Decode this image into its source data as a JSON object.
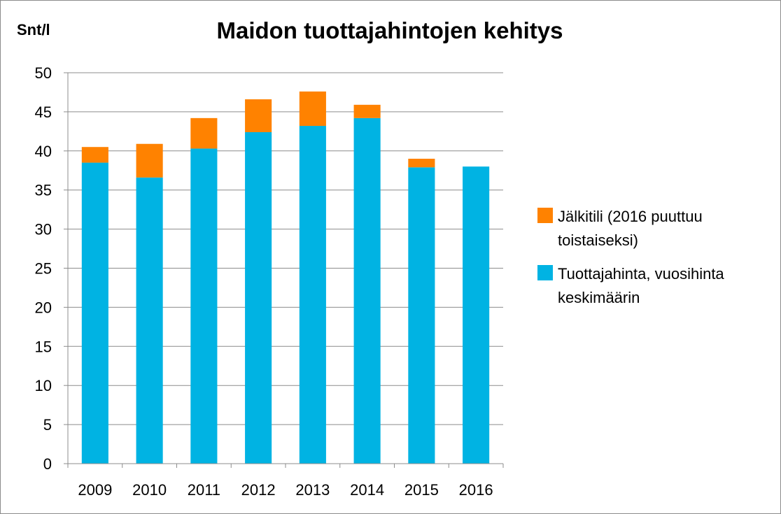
{
  "chart_data": {
    "type": "bar",
    "stacked": true,
    "title": "Maidon tuottajahintojen kehitys",
    "ylabel": "Snt/l",
    "xlabel": "",
    "categories": [
      "2009",
      "2010",
      "2011",
      "2012",
      "2013",
      "2014",
      "2015",
      "2016"
    ],
    "ylim": [
      0,
      50
    ],
    "yticks": [
      0,
      5,
      10,
      15,
      20,
      25,
      30,
      35,
      40,
      45,
      50
    ],
    "grid": true,
    "legend_position": "right",
    "series": [
      {
        "name": "Tuottajahinta, vuosihinta keskimäärin",
        "legend_lines": [
          "Tuottajahinta, vuosihinta",
          "keskimäärin"
        ],
        "color": "#00b3e3",
        "values": [
          38.5,
          36.6,
          40.3,
          42.4,
          43.2,
          44.2,
          37.9,
          38.0
        ]
      },
      {
        "name": "Jälkitili (2016 puuttuu toistaiseksi)",
        "legend_lines": [
          "Jälkitili (2016 puuttuu",
          "toistaiseksi)"
        ],
        "color": "#ff8200",
        "values": [
          2.0,
          4.3,
          3.9,
          4.2,
          4.4,
          1.7,
          1.1,
          0
        ]
      }
    ]
  }
}
